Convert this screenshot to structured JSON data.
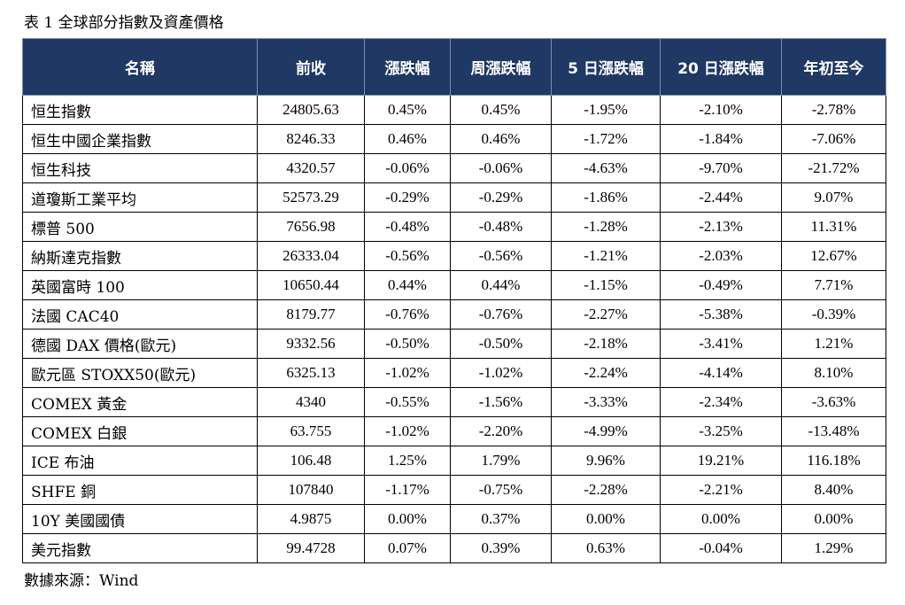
{
  "caption": "表 1 全球部分指數及資產價格",
  "columns": [
    "名稱",
    "前收",
    "漲跌幅",
    "周漲跌幅",
    "5 日漲跌幅",
    "20 日漲跌幅",
    "年初至今"
  ],
  "rows": [
    [
      "恒生指數",
      "24805.63",
      "0.45%",
      "0.45%",
      "-1.95%",
      "-2.10%",
      "-2.78%"
    ],
    [
      "恒生中國企業指數",
      "8246.33",
      "0.46%",
      "0.46%",
      "-1.72%",
      "-1.84%",
      "-7.06%"
    ],
    [
      "恒生科技",
      "4320.57",
      "-0.06%",
      "-0.06%",
      "-4.63%",
      "-9.70%",
      "-21.72%"
    ],
    [
      "道瓊斯工業平均",
      "52573.29",
      "-0.29%",
      "-0.29%",
      "-1.86%",
      "-2.44%",
      "9.07%"
    ],
    [
      "標普 500",
      "7656.98",
      "-0.48%",
      "-0.48%",
      "-1.28%",
      "-2.13%",
      "11.31%"
    ],
    [
      "納斯達克指數",
      "26333.04",
      "-0.56%",
      "-0.56%",
      "-1.21%",
      "-2.03%",
      "12.67%"
    ],
    [
      "英國富時 100",
      "10650.44",
      "0.44%",
      "0.44%",
      "-1.15%",
      "-0.49%",
      "7.71%"
    ],
    [
      "法國 CAC40",
      "8179.77",
      "-0.76%",
      "-0.76%",
      "-2.27%",
      "-5.38%",
      "-0.39%"
    ],
    [
      "德國 DAX 價格(歐元)",
      "9332.56",
      "-0.50%",
      "-0.50%",
      "-2.18%",
      "-3.41%",
      "1.21%"
    ],
    [
      "歐元區 STOXX50(歐元)",
      "6325.13",
      "-1.02%",
      "-1.02%",
      "-2.24%",
      "-4.14%",
      "8.10%"
    ],
    [
      "COMEX 黃金",
      "4340",
      "-0.55%",
      "-1.56%",
      "-3.33%",
      "-2.34%",
      "-3.63%"
    ],
    [
      "COMEX 白銀",
      "63.755",
      "-1.02%",
      "-2.20%",
      "-4.99%",
      "-3.25%",
      "-13.48%"
    ],
    [
      "ICE 布油",
      "106.48",
      "1.25%",
      "1.79%",
      "9.96%",
      "19.21%",
      "116.18%"
    ],
    [
      "SHFE 銅",
      "107840",
      "-1.17%",
      "-0.75%",
      "-2.28%",
      "-2.21%",
      "8.40%"
    ],
    [
      "10Y 美國國債",
      "4.9875",
      "0.00%",
      "0.37%",
      "0.00%",
      "0.00%",
      "0.00%"
    ],
    [
      "美元指數",
      "99.4728",
      "0.07%",
      "0.39%",
      "0.63%",
      "-0.04%",
      "1.29%"
    ]
  ],
  "source": "數據來源：Wind"
}
